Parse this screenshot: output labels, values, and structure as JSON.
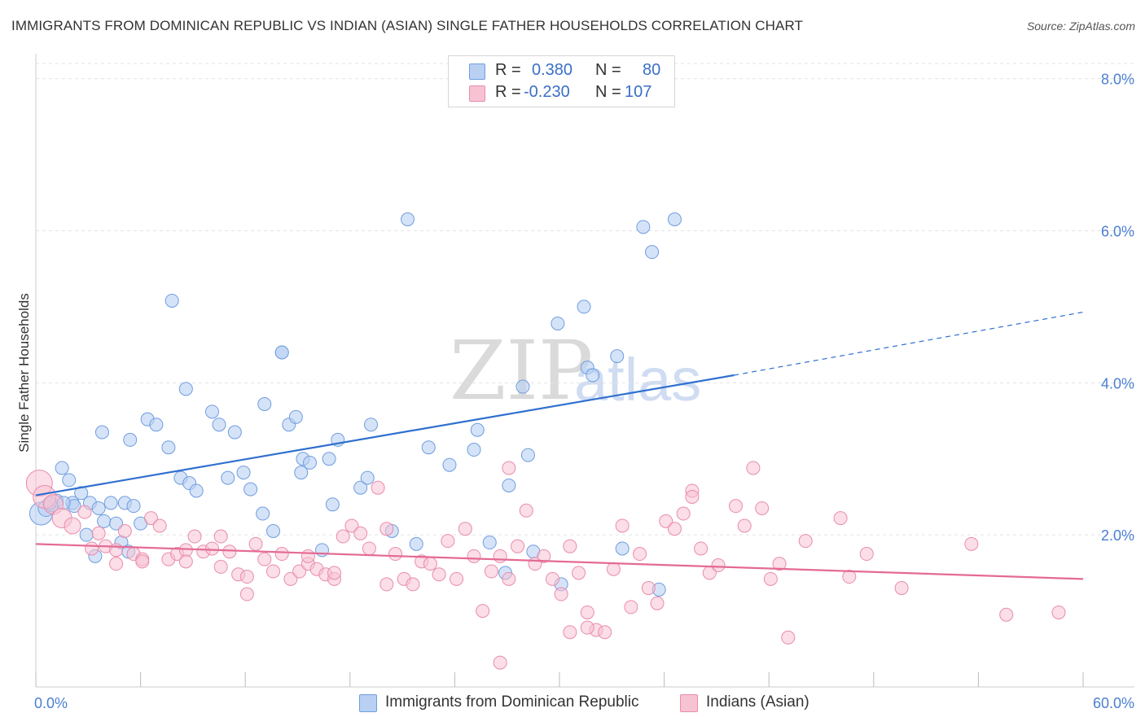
{
  "header": {
    "title": "IMMIGRANTS FROM DOMINICAN REPUBLIC VS INDIAN (ASIAN) SINGLE FATHER HOUSEHOLDS CORRELATION CHART",
    "source": "Source: ZipAtlas.com"
  },
  "watermark": {
    "zip": "ZIP",
    "atlas": "atlas"
  },
  "legend": {
    "rows": [
      {
        "r_label": "R =",
        "r_value": "0.380",
        "n_label": "N =",
        "n_value": "80"
      },
      {
        "r_label": "R =",
        "r_value": "-0.230",
        "n_label": "N =",
        "n_value": "107"
      }
    ]
  },
  "colors": {
    "blue_fill": "#b9d0f3",
    "blue_stroke": "#6f9ddf",
    "blue_line": "#2f6fcf",
    "pink_fill": "#f7c3d3",
    "pink_stroke": "#e98cab",
    "pink_line": "#e46a94",
    "grid": "#e3e3e3",
    "tick_text": "#4a7fd0"
  },
  "chart_data": {
    "type": "scatter",
    "title": "IMMIGRANTS FROM DOMINICAN REPUBLIC VS INDIAN (ASIAN) SINGLE FATHER HOUSEHOLDS CORRELATION CHART",
    "xlabel": "",
    "ylabel": "Single Father Households",
    "xlim": [
      0,
      60
    ],
    "ylim": [
      0,
      8.2
    ],
    "x_tick_labels": [
      "0.0%",
      "60.0%"
    ],
    "y_ticks": [
      2.0,
      4.0,
      6.0,
      8.0
    ],
    "y_tick_labels": [
      "2.0%",
      "4.0%",
      "6.0%",
      "8.0%"
    ],
    "grid": "horizontal dashed",
    "legend_position": "bottom",
    "series": [
      {
        "name": "Immigrants from Dominican Republic",
        "color": "#6f9ddf",
        "regression": {
          "x": [
            0,
            40
          ],
          "y": [
            2.52,
            4.1
          ],
          "extension": {
            "x": [
              40,
              60
            ],
            "y": [
              4.1,
              4.93
            ]
          }
        },
        "points": [
          [
            0.3,
            2.28,
            14
          ],
          [
            0.6,
            2.35,
            10
          ],
          [
            0.9,
            2.4,
            9
          ],
          [
            1.2,
            2.45,
            8
          ],
          [
            1.5,
            2.88,
            8
          ],
          [
            1.9,
            2.72,
            8
          ],
          [
            2.1,
            2.42,
            8
          ],
          [
            2.6,
            2.55,
            8
          ],
          [
            3.1,
            2.42,
            8
          ],
          [
            3.6,
            2.35,
            8
          ],
          [
            3.9,
            2.18,
            8
          ],
          [
            4.3,
            2.42,
            8
          ],
          [
            5.1,
            2.42,
            8
          ],
          [
            5.6,
            2.38,
            8
          ],
          [
            3.8,
            3.35,
            8
          ],
          [
            5.4,
            3.25,
            8
          ],
          [
            6.4,
            3.52,
            8
          ],
          [
            6.9,
            3.45,
            8
          ],
          [
            7.6,
            3.15,
            8
          ],
          [
            8.3,
            2.75,
            8
          ],
          [
            8.8,
            2.68,
            8
          ],
          [
            8.6,
            3.92,
            8
          ],
          [
            10.5,
            3.45,
            8
          ],
          [
            10.1,
            3.62,
            8
          ],
          [
            11.4,
            3.35,
            8
          ],
          [
            11.9,
            2.82,
            8
          ],
          [
            12.3,
            2.6,
            8
          ],
          [
            11.0,
            2.75,
            8
          ],
          [
            13.0,
            2.28,
            8
          ],
          [
            13.6,
            2.05,
            8
          ],
          [
            13.1,
            3.72,
            8
          ],
          [
            14.1,
            4.4,
            8
          ],
          [
            14.1,
            4.4,
            8
          ],
          [
            14.5,
            3.45,
            8
          ],
          [
            14.9,
            3.55,
            8
          ],
          [
            15.3,
            3.0,
            8
          ],
          [
            15.7,
            2.95,
            8
          ],
          [
            16.8,
            3.0,
            8
          ],
          [
            17.3,
            3.25,
            8
          ],
          [
            17.0,
            2.4,
            8
          ],
          [
            16.4,
            1.8,
            8
          ],
          [
            7.8,
            5.08,
            8
          ],
          [
            15.2,
            2.82,
            8
          ],
          [
            18.6,
            2.62,
            8
          ],
          [
            19.0,
            2.75,
            8
          ],
          [
            19.2,
            3.45,
            8
          ],
          [
            20.4,
            2.05,
            8
          ],
          [
            21.3,
            6.15,
            8
          ],
          [
            21.8,
            1.88,
            8
          ],
          [
            22.5,
            3.15,
            8
          ],
          [
            23.7,
            2.92,
            8
          ],
          [
            25.1,
            3.12,
            8
          ],
          [
            25.3,
            3.38,
            8
          ],
          [
            26.9,
            1.5,
            8
          ],
          [
            27.1,
            2.65,
            8
          ],
          [
            27.9,
            3.95,
            8
          ],
          [
            28.2,
            3.05,
            8
          ],
          [
            28.5,
            1.78,
            8
          ],
          [
            29.9,
            4.78,
            8
          ],
          [
            30.1,
            1.35,
            8
          ],
          [
            31.4,
            5.0,
            8
          ],
          [
            31.6,
            4.2,
            8
          ],
          [
            31.9,
            4.1,
            8
          ],
          [
            33.3,
            4.35,
            8
          ],
          [
            33.6,
            1.82,
            8
          ],
          [
            34.8,
            6.05,
            8
          ],
          [
            35.3,
            5.72,
            8
          ],
          [
            35.7,
            1.28,
            8
          ],
          [
            36.6,
            6.15,
            8
          ],
          [
            4.6,
            2.15,
            8
          ],
          [
            4.9,
            1.9,
            8
          ],
          [
            6.0,
            2.15,
            8
          ],
          [
            2.2,
            2.38,
            8
          ],
          [
            2.9,
            2.0,
            8
          ],
          [
            3.4,
            1.72,
            8
          ],
          [
            1.6,
            2.42,
            8
          ],
          [
            9.2,
            2.58,
            8
          ],
          [
            26.0,
            1.9,
            8
          ],
          [
            0.8,
            2.42,
            8
          ],
          [
            5.3,
            1.78,
            8
          ]
        ]
      },
      {
        "name": "Indians (Asian)",
        "color": "#e98cab",
        "regression": {
          "x": [
            0,
            60
          ],
          "y": [
            1.88,
            1.42
          ]
        },
        "points": [
          [
            0.2,
            2.68,
            16
          ],
          [
            0.5,
            2.5,
            14
          ],
          [
            1.0,
            2.4,
            12
          ],
          [
            1.5,
            2.22,
            12
          ],
          [
            2.1,
            2.12,
            10
          ],
          [
            2.8,
            2.3,
            8
          ],
          [
            3.2,
            1.82,
            8
          ],
          [
            3.6,
            2.02,
            8
          ],
          [
            4.0,
            1.85,
            8
          ],
          [
            4.6,
            1.8,
            8
          ],
          [
            5.1,
            2.05,
            8
          ],
          [
            5.6,
            1.75,
            8
          ],
          [
            6.1,
            1.68,
            8
          ],
          [
            6.6,
            2.22,
            8
          ],
          [
            7.1,
            2.12,
            8
          ],
          [
            7.6,
            1.68,
            8
          ],
          [
            8.1,
            1.75,
            8
          ],
          [
            8.6,
            1.8,
            8
          ],
          [
            9.1,
            1.98,
            8
          ],
          [
            9.6,
            1.78,
            8
          ],
          [
            10.1,
            1.82,
            8
          ],
          [
            10.6,
            1.98,
            8
          ],
          [
            11.1,
            1.78,
            8
          ],
          [
            11.6,
            1.48,
            8
          ],
          [
            12.1,
            1.45,
            8
          ],
          [
            12.6,
            1.88,
            8
          ],
          [
            13.1,
            1.68,
            8
          ],
          [
            13.6,
            1.52,
            8
          ],
          [
            14.1,
            1.75,
            8
          ],
          [
            14.6,
            1.42,
            8
          ],
          [
            15.1,
            1.52,
            8
          ],
          [
            15.6,
            1.62,
            8
          ],
          [
            16.1,
            1.55,
            8
          ],
          [
            16.6,
            1.48,
            8
          ],
          [
            17.1,
            1.42,
            8
          ],
          [
            17.6,
            1.98,
            8
          ],
          [
            18.1,
            2.12,
            8
          ],
          [
            18.6,
            2.02,
            8
          ],
          [
            19.1,
            1.82,
            8
          ],
          [
            19.6,
            2.62,
            8
          ],
          [
            20.1,
            2.08,
            8
          ],
          [
            20.6,
            1.75,
            8
          ],
          [
            21.1,
            1.42,
            8
          ],
          [
            21.6,
            1.35,
            8
          ],
          [
            22.1,
            1.65,
            8
          ],
          [
            22.6,
            1.62,
            8
          ],
          [
            23.1,
            1.48,
            8
          ],
          [
            23.6,
            1.92,
            8
          ],
          [
            24.1,
            1.42,
            8
          ],
          [
            24.6,
            2.08,
            8
          ],
          [
            25.1,
            1.72,
            8
          ],
          [
            25.6,
            1.0,
            8
          ],
          [
            26.1,
            1.52,
            8
          ],
          [
            26.6,
            1.72,
            8
          ],
          [
            27.1,
            2.88,
            8
          ],
          [
            27.6,
            1.85,
            8
          ],
          [
            28.1,
            2.32,
            8
          ],
          [
            28.6,
            1.62,
            8
          ],
          [
            29.1,
            1.72,
            8
          ],
          [
            29.6,
            1.42,
            8
          ],
          [
            30.1,
            1.22,
            8
          ],
          [
            30.6,
            1.85,
            8
          ],
          [
            31.1,
            1.5,
            8
          ],
          [
            31.6,
            0.98,
            8
          ],
          [
            32.1,
            0.75,
            8
          ],
          [
            32.6,
            0.72,
            8
          ],
          [
            33.1,
            1.55,
            8
          ],
          [
            33.6,
            2.12,
            8
          ],
          [
            34.1,
            1.05,
            8
          ],
          [
            34.6,
            1.75,
            8
          ],
          [
            35.1,
            1.3,
            8
          ],
          [
            35.6,
            1.1,
            8
          ],
          [
            36.1,
            2.18,
            8
          ],
          [
            36.6,
            2.08,
            8
          ],
          [
            37.1,
            2.28,
            8
          ],
          [
            37.6,
            2.58,
            8
          ],
          [
            38.1,
            1.82,
            8
          ],
          [
            38.6,
            1.5,
            8
          ],
          [
            39.1,
            1.6,
            8
          ],
          [
            40.1,
            2.38,
            8
          ],
          [
            40.6,
            2.12,
            8
          ],
          [
            41.1,
            2.88,
            8
          ],
          [
            41.6,
            2.35,
            8
          ],
          [
            42.1,
            1.42,
            8
          ],
          [
            42.6,
            1.62,
            8
          ],
          [
            43.1,
            0.65,
            8
          ],
          [
            44.1,
            1.92,
            8
          ],
          [
            46.1,
            2.22,
            8
          ],
          [
            46.6,
            1.45,
            8
          ],
          [
            47.6,
            1.75,
            8
          ],
          [
            49.6,
            1.3,
            8
          ],
          [
            53.6,
            1.88,
            8
          ],
          [
            55.6,
            0.95,
            8
          ],
          [
            58.6,
            0.98,
            8
          ],
          [
            26.6,
            0.32,
            8
          ],
          [
            30.6,
            0.72,
            8
          ],
          [
            31.6,
            0.78,
            8
          ],
          [
            27.1,
            1.42,
            8
          ],
          [
            12.1,
            1.22,
            8
          ],
          [
            10.6,
            1.58,
            8
          ],
          [
            8.6,
            1.65,
            8
          ],
          [
            6.1,
            1.65,
            8
          ],
          [
            15.6,
            1.72,
            8
          ],
          [
            17.1,
            1.5,
            8
          ],
          [
            4.6,
            1.62,
            8
          ],
          [
            20.1,
            1.35,
            8
          ],
          [
            37.6,
            2.5,
            8
          ]
        ]
      }
    ]
  }
}
